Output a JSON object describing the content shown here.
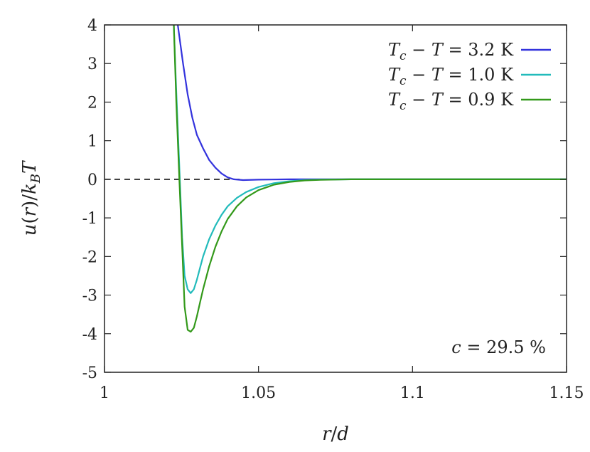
{
  "chart_data": {
    "type": "line",
    "xlabel": "r/d",
    "ylabel": "u(r)/k_B T",
    "xlim": [
      1.0,
      1.15
    ],
    "ylim": [
      -5,
      4
    ],
    "xticks": [
      "1",
      "1.05",
      "1.1",
      "1.15"
    ],
    "xtick_values": [
      1.0,
      1.05,
      1.1,
      1.15
    ],
    "yticks": [
      "4",
      "3",
      "2",
      "1",
      "0",
      "-1",
      "-2",
      "-3",
      "-4",
      "-5"
    ],
    "ytick_values": [
      4,
      3,
      2,
      1,
      0,
      -1,
      -2,
      -3,
      -4,
      -5
    ],
    "grid": false,
    "legend_position": "top-right",
    "annotation": "c = 29.5 %",
    "reference_line": {
      "y": 0,
      "style": "dashed",
      "x_range": [
        1.0,
        1.045
      ]
    },
    "series": [
      {
        "name": "T_c − T = 3.2 K",
        "color": "#3333dd",
        "x": [
          1.0238,
          1.0255,
          1.027,
          1.0285,
          1.03,
          1.032,
          1.034,
          1.036,
          1.038,
          1.04,
          1.042,
          1.045,
          1.05,
          1.06,
          1.08,
          1.1,
          1.15
        ],
        "y": [
          4.0,
          3.0,
          2.2,
          1.6,
          1.15,
          0.8,
          0.5,
          0.3,
          0.15,
          0.05,
          0.0,
          -0.02,
          -0.01,
          0.0,
          0.0,
          0.0,
          0.0
        ]
      },
      {
        "name": "T_c − T = 1.0 K",
        "color": "#22bbbb",
        "x": [
          1.0225,
          1.0232,
          1.0242,
          1.0252,
          1.026,
          1.027,
          1.028,
          1.029,
          1.03,
          1.031,
          1.032,
          1.034,
          1.036,
          1.038,
          1.04,
          1.043,
          1.046,
          1.05,
          1.055,
          1.06,
          1.065,
          1.07,
          1.08,
          1.1,
          1.15
        ],
        "y": [
          4.0,
          2.5,
          0.5,
          -1.5,
          -2.5,
          -2.85,
          -2.95,
          -2.85,
          -2.6,
          -2.3,
          -2.0,
          -1.55,
          -1.2,
          -0.92,
          -0.7,
          -0.48,
          -0.33,
          -0.2,
          -0.1,
          -0.05,
          -0.02,
          -0.01,
          0.0,
          0.0,
          0.0
        ]
      },
      {
        "name": "T_c − T = 0.9 K",
        "color": "#33991a",
        "x": [
          1.0225,
          1.0233,
          1.0243,
          1.0253,
          1.026,
          1.027,
          1.028,
          1.029,
          1.03,
          1.031,
          1.032,
          1.034,
          1.036,
          1.038,
          1.04,
          1.043,
          1.046,
          1.05,
          1.055,
          1.06,
          1.065,
          1.07,
          1.08,
          1.1,
          1.15
        ],
        "y": [
          4.0,
          2.0,
          0.0,
          -1.9,
          -3.3,
          -3.9,
          -3.95,
          -3.85,
          -3.55,
          -3.2,
          -2.85,
          -2.25,
          -1.75,
          -1.35,
          -1.03,
          -0.7,
          -0.47,
          -0.28,
          -0.14,
          -0.07,
          -0.03,
          -0.015,
          0.0,
          0.0,
          0.0
        ]
      }
    ]
  }
}
